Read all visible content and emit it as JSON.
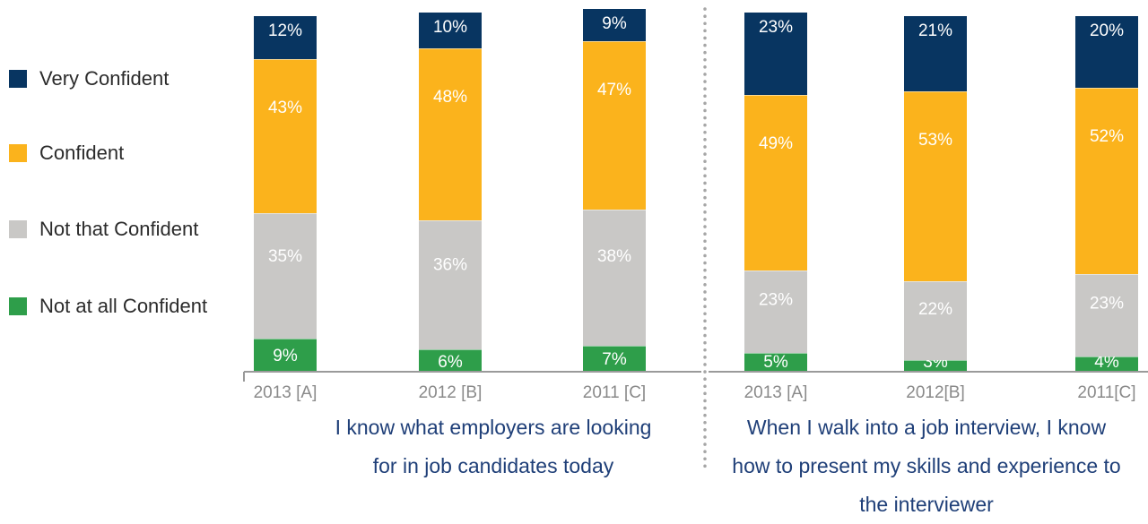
{
  "colors": {
    "very_confident": "#083561",
    "confident": "#fbb31c",
    "not_that_confident": "#c9c8c6",
    "not_at_all_confident": "#2e9e4a",
    "caption": "#1f3f78",
    "tick_label": "#8a8a8a"
  },
  "legend": [
    {
      "label": "Very Confident",
      "color": "#083561"
    },
    {
      "label": "Confident",
      "color": "#fbb31c"
    },
    {
      "label": "Not that Confident",
      "color": "#c9c8c6"
    },
    {
      "label": "Not at all Confident",
      "color": "#2e9e4a"
    }
  ],
  "captions": {
    "left": [
      "I know what  employers are looking",
      "for in job candidates today"
    ],
    "right": [
      "When I walk into a job interview, I know",
      "how to  present my skills and experience to",
      "the interviewer"
    ]
  },
  "chart_data": [
    {
      "type": "bar",
      "stacked": true,
      "ylim": [
        0,
        100
      ],
      "categories": [
        "2013 [A]",
        "2012 [B]",
        "2011 [C]"
      ],
      "series": [
        {
          "name": "Not at all Confident",
          "values": [
            9,
            6,
            7
          ],
          "labels": [
            "9%",
            "6%",
            "7%"
          ]
        },
        {
          "name": "Not that Confident",
          "values": [
            35,
            36,
            38
          ],
          "labels": [
            "35%",
            "36%",
            "38%"
          ]
        },
        {
          "name": "Confident",
          "values": [
            43,
            48,
            47
          ],
          "labels": [
            "43%",
            "48%",
            "47%"
          ]
        },
        {
          "name": "Very Confident",
          "values": [
            12,
            10,
            9
          ],
          "labels": [
            "12%",
            "10%",
            "9%"
          ]
        }
      ]
    },
    {
      "type": "bar",
      "stacked": true,
      "ylim": [
        0,
        100
      ],
      "categories": [
        "2013 [A]",
        "2012[B]",
        "2011[C]"
      ],
      "series": [
        {
          "name": "Not at all Confident",
          "values": [
            5,
            3,
            4
          ],
          "labels": [
            "5%",
            "3%",
            "4%"
          ]
        },
        {
          "name": "Not that Confident",
          "values": [
            23,
            22,
            23
          ],
          "labels": [
            "23%",
            "22%",
            "23%"
          ]
        },
        {
          "name": "Confident",
          "values": [
            49,
            53,
            52
          ],
          "labels": [
            "49%",
            "53%",
            "52%"
          ]
        },
        {
          "name": "Very Confident",
          "values": [
            23,
            21,
            20
          ],
          "labels": [
            "23%",
            "21%",
            "20%"
          ]
        }
      ]
    }
  ]
}
